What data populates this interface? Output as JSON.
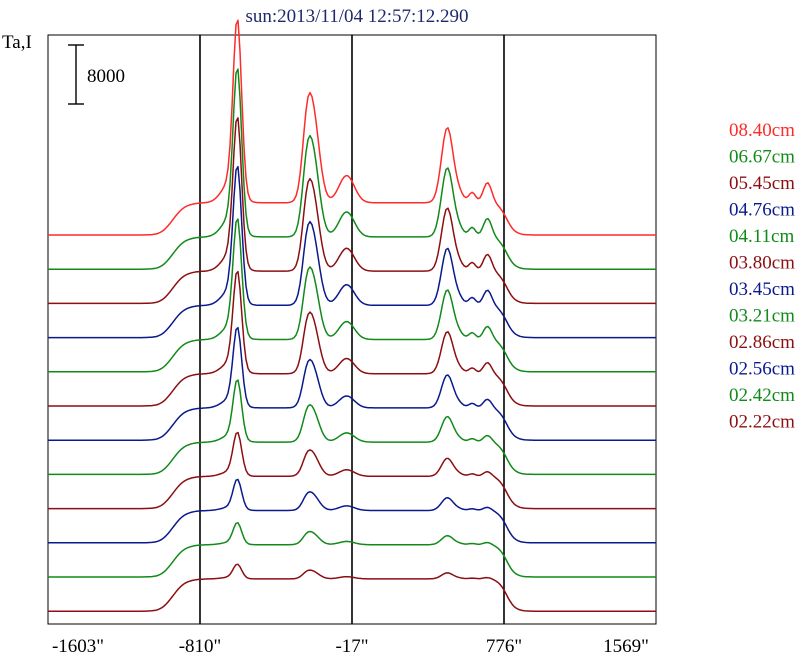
{
  "chart_data": {
    "type": "line",
    "title": "sun:2013/11/04 12:57:12.290",
    "ylabel": "Ta,I",
    "scale_bar_label": "8000",
    "xlim": [
      -1603,
      1569
    ],
    "x_ticks": [
      "-1603\"",
      "-810\"",
      "-17\"",
      "776\"",
      "1569\""
    ],
    "vertical_lines_x": [
      -810,
      -17,
      776
    ],
    "series": [
      {
        "name": "08.40cm",
        "color": "#ff2a2a",
        "peak": 1.0
      },
      {
        "name": "06.67cm",
        "color": "#118a1a",
        "peak": 0.92
      },
      {
        "name": "05.45cm",
        "color": "#8b0f12",
        "peak": 0.84
      },
      {
        "name": "04.76cm",
        "color": "#0a1a8c",
        "peak": 0.76
      },
      {
        "name": "04.11cm",
        "color": "#118a1a",
        "peak": 0.66
      },
      {
        "name": "03.80cm",
        "color": "#8b0f12",
        "peak": 0.56
      },
      {
        "name": "03.45cm",
        "color": "#0a1a8c",
        "peak": 0.44
      },
      {
        "name": "03.21cm",
        "color": "#118a1a",
        "peak": 0.34
      },
      {
        "name": "02.86cm",
        "color": "#8b0f12",
        "peak": 0.24
      },
      {
        "name": "02.56cm",
        "color": "#0a1a8c",
        "peak": 0.17
      },
      {
        "name": "02.42cm",
        "color": "#118a1a",
        "peak": 0.12
      },
      {
        "name": "02.22cm",
        "color": "#8b0f12",
        "peak": 0.08
      }
    ]
  }
}
